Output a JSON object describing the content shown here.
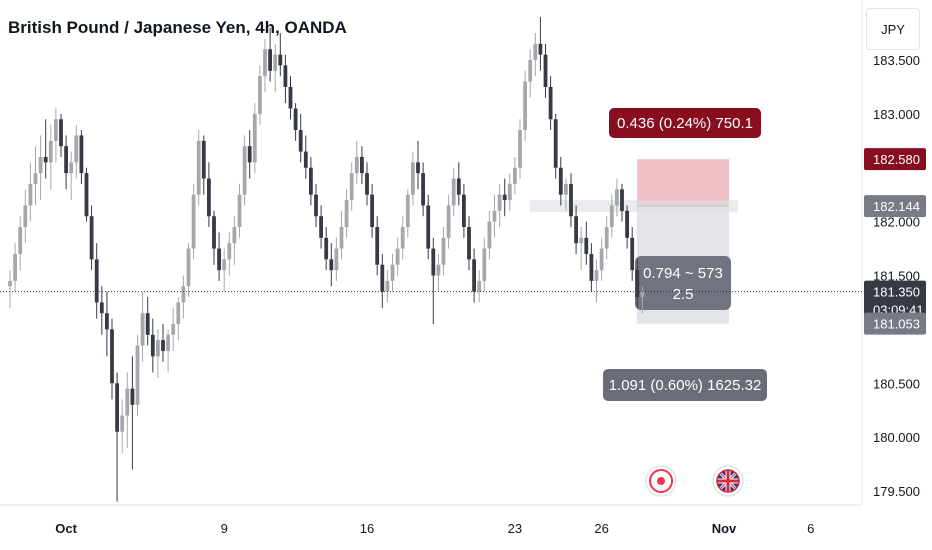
{
  "header": {
    "title": "British Pound / Japanese Yen, 4h, OANDA",
    "currency": "JPY"
  },
  "chart_data": {
    "type": "candlestick",
    "title": "British Pound / Japanese Yen, 4h, OANDA",
    "y_ticks": [
      "183.500",
      "183.000",
      "182.000",
      "181.500",
      "180.500",
      "180.000",
      "179.500"
    ],
    "y_tick_values": [
      183.5,
      183.0,
      182.0,
      181.5,
      180.5,
      180.0,
      179.5
    ],
    "x_ticks": [
      "Oct",
      "9",
      "16",
      "23",
      "26",
      "Nov",
      "6"
    ],
    "x_tick_index": [
      11,
      42,
      70,
      99,
      116,
      140,
      157
    ],
    "ylim": [
      179.35,
      184.05
    ],
    "current_price": 181.35,
    "price_badges": [
      {
        "label": "182.580",
        "value": 182.58,
        "color": "#880e1f"
      },
      {
        "label": "182.144",
        "value": 182.144,
        "color": "#787b86"
      },
      {
        "label": "181.350",
        "sublabel": "03:09:41",
        "value": 181.35,
        "color": "#363a45"
      },
      {
        "label": "181.053",
        "value": 181.053,
        "color": "#787b86"
      }
    ],
    "position_tool": {
      "entry": 182.144,
      "target": 181.053,
      "stop": 182.58,
      "target_label": "1.091 (0.60%) 1625.32",
      "stop_label": "0.436 (0.24%) 750.1",
      "info_line1": "0.794 ~ 573",
      "info_line2": "2.5"
    },
    "candles": [
      [
        181.4,
        181.55,
        181.2,
        181.45
      ],
      [
        181.45,
        181.8,
        181.35,
        181.7
      ],
      [
        181.7,
        182.05,
        181.55,
        181.95
      ],
      [
        181.95,
        182.3,
        181.8,
        182.15
      ],
      [
        182.15,
        182.55,
        182.0,
        182.35
      ],
      [
        182.35,
        182.7,
        182.15,
        182.45
      ],
      [
        182.45,
        182.8,
        182.2,
        182.6
      ],
      [
        182.6,
        182.95,
        182.4,
        182.55
      ],
      [
        182.55,
        182.9,
        182.3,
        182.75
      ],
      [
        182.75,
        183.05,
        182.55,
        182.95
      ],
      [
        182.95,
        183.0,
        182.6,
        182.7
      ],
      [
        182.7,
        182.8,
        182.3,
        182.45
      ],
      [
        182.45,
        182.65,
        182.2,
        182.55
      ],
      [
        182.55,
        182.9,
        182.4,
        182.8
      ],
      [
        182.8,
        182.85,
        182.35,
        182.45
      ],
      [
        182.45,
        182.5,
        182.0,
        182.05
      ],
      [
        182.05,
        182.15,
        181.55,
        181.65
      ],
      [
        181.65,
        181.8,
        181.1,
        181.25
      ],
      [
        181.25,
        181.4,
        180.95,
        181.15
      ],
      [
        181.15,
        181.35,
        180.75,
        181.0
      ],
      [
        181.0,
        181.1,
        180.35,
        180.5
      ],
      [
        180.5,
        180.6,
        179.4,
        180.05
      ],
      [
        180.05,
        180.35,
        179.85,
        180.2
      ],
      [
        180.2,
        180.6,
        179.9,
        180.45
      ],
      [
        180.45,
        180.75,
        179.7,
        180.3
      ],
      [
        180.3,
        180.95,
        180.2,
        180.85
      ],
      [
        180.85,
        181.35,
        180.7,
        181.15
      ],
      [
        181.15,
        181.3,
        180.85,
        180.95
      ],
      [
        180.95,
        181.1,
        180.6,
        180.75
      ],
      [
        180.75,
        181.0,
        180.55,
        180.9
      ],
      [
        180.9,
        181.05,
        180.7,
        180.8
      ],
      [
        180.8,
        181.0,
        180.6,
        180.95
      ],
      [
        180.95,
        181.2,
        180.8,
        181.05
      ],
      [
        181.05,
        181.3,
        180.9,
        181.25
      ],
      [
        181.25,
        181.5,
        181.1,
        181.4
      ],
      [
        181.4,
        181.8,
        181.3,
        181.75
      ],
      [
        181.75,
        182.35,
        181.65,
        182.25
      ],
      [
        182.25,
        182.85,
        182.15,
        182.75
      ],
      [
        182.75,
        182.8,
        182.25,
        182.4
      ],
      [
        182.4,
        182.55,
        181.95,
        182.05
      ],
      [
        182.05,
        182.1,
        181.6,
        181.75
      ],
      [
        181.75,
        181.9,
        181.45,
        181.55
      ],
      [
        181.55,
        181.75,
        181.35,
        181.65
      ],
      [
        181.65,
        181.9,
        181.5,
        181.8
      ],
      [
        181.8,
        182.05,
        181.6,
        181.95
      ],
      [
        181.95,
        182.35,
        181.85,
        182.25
      ],
      [
        182.25,
        182.8,
        182.15,
        182.7
      ],
      [
        182.7,
        182.85,
        182.4,
        182.55
      ],
      [
        182.55,
        183.1,
        182.45,
        183.0
      ],
      [
        183.0,
        183.45,
        182.9,
        183.35
      ],
      [
        183.35,
        183.7,
        183.2,
        183.6
      ],
      [
        183.6,
        183.8,
        183.3,
        183.4
      ],
      [
        183.4,
        183.65,
        183.2,
        183.55
      ],
      [
        183.55,
        183.75,
        183.35,
        183.45
      ],
      [
        183.45,
        183.55,
        183.1,
        183.25
      ],
      [
        183.25,
        183.35,
        182.95,
        183.05
      ],
      [
        183.05,
        183.1,
        182.75,
        182.85
      ],
      [
        182.85,
        183.0,
        182.55,
        182.65
      ],
      [
        182.65,
        182.8,
        182.4,
        182.5
      ],
      [
        182.5,
        182.6,
        182.15,
        182.25
      ],
      [
        182.25,
        182.35,
        181.95,
        182.05
      ],
      [
        182.05,
        182.15,
        181.75,
        181.85
      ],
      [
        181.85,
        181.95,
        181.55,
        181.65
      ],
      [
        181.65,
        181.8,
        181.4,
        181.55
      ],
      [
        181.55,
        181.85,
        181.45,
        181.75
      ],
      [
        181.75,
        182.1,
        181.65,
        181.95
      ],
      [
        181.95,
        182.3,
        181.85,
        182.2
      ],
      [
        182.2,
        182.55,
        182.1,
        182.45
      ],
      [
        182.45,
        182.75,
        182.35,
        182.6
      ],
      [
        182.6,
        182.7,
        182.35,
        182.45
      ],
      [
        182.45,
        182.55,
        182.15,
        182.25
      ],
      [
        182.25,
        182.35,
        181.85,
        181.95
      ],
      [
        181.95,
        182.05,
        181.5,
        181.6
      ],
      [
        181.6,
        181.7,
        181.2,
        181.35
      ],
      [
        181.35,
        181.55,
        181.25,
        181.45
      ],
      [
        181.45,
        181.7,
        181.35,
        181.6
      ],
      [
        181.6,
        181.85,
        181.5,
        181.75
      ],
      [
        181.75,
        182.05,
        181.65,
        181.95
      ],
      [
        181.95,
        182.3,
        181.85,
        182.25
      ],
      [
        182.25,
        182.65,
        182.15,
        182.55
      ],
      [
        182.55,
        182.75,
        182.3,
        182.45
      ],
      [
        182.45,
        182.55,
        182.05,
        182.15
      ],
      [
        182.15,
        182.25,
        181.65,
        181.75
      ],
      [
        181.75,
        181.85,
        181.05,
        181.5
      ],
      [
        181.5,
        181.7,
        181.35,
        181.6
      ],
      [
        181.6,
        181.95,
        181.5,
        181.85
      ],
      [
        181.85,
        182.25,
        181.75,
        182.15
      ],
      [
        182.15,
        182.5,
        182.05,
        182.4
      ],
      [
        182.4,
        182.55,
        182.15,
        182.25
      ],
      [
        182.25,
        182.35,
        181.85,
        181.95
      ],
      [
        181.95,
        182.05,
        181.55,
        181.65
      ],
      [
        181.65,
        181.75,
        181.25,
        181.35
      ],
      [
        181.35,
        181.55,
        181.25,
        181.45
      ],
      [
        181.45,
        181.85,
        181.35,
        181.75
      ],
      [
        181.75,
        182.1,
        181.65,
        182.0
      ],
      [
        182.0,
        182.25,
        181.85,
        182.1
      ],
      [
        182.1,
        182.35,
        181.95,
        182.25
      ],
      [
        182.25,
        182.4,
        182.05,
        182.2
      ],
      [
        182.2,
        182.45,
        182.1,
        182.35
      ],
      [
        182.35,
        182.6,
        182.25,
        182.5
      ],
      [
        182.5,
        182.95,
        182.4,
        182.85
      ],
      [
        182.85,
        183.4,
        182.75,
        183.3
      ],
      [
        183.3,
        183.6,
        183.15,
        183.5
      ],
      [
        183.5,
        183.75,
        183.35,
        183.65
      ],
      [
        183.65,
        183.9,
        183.4,
        183.55
      ],
      [
        183.55,
        183.65,
        183.15,
        183.25
      ],
      [
        183.25,
        183.35,
        182.85,
        182.95
      ],
      [
        182.95,
        183.0,
        182.4,
        182.5
      ],
      [
        182.5,
        182.6,
        182.15,
        182.25
      ],
      [
        182.25,
        182.4,
        182.1,
        182.35
      ],
      [
        182.35,
        182.45,
        181.95,
        182.05
      ],
      [
        182.05,
        182.15,
        181.7,
        181.8
      ],
      [
        181.8,
        181.95,
        181.55,
        181.85
      ],
      [
        181.85,
        182.0,
        181.6,
        181.7
      ],
      [
        181.7,
        181.8,
        181.35,
        181.45
      ],
      [
        181.45,
        181.65,
        181.25,
        181.55
      ],
      [
        181.55,
        181.85,
        181.45,
        181.75
      ],
      [
        181.75,
        182.05,
        181.65,
        181.95
      ],
      [
        181.95,
        182.25,
        181.85,
        182.15
      ],
      [
        182.15,
        182.4,
        182.05,
        182.3
      ],
      [
        182.3,
        182.35,
        182.0,
        182.1
      ],
      [
        182.1,
        182.15,
        181.75,
        181.85
      ],
      [
        181.85,
        181.95,
        181.45,
        181.55
      ],
      [
        181.55,
        181.65,
        181.2,
        181.3
      ],
      [
        181.3,
        181.4,
        181.15,
        181.35
      ]
    ]
  }
}
